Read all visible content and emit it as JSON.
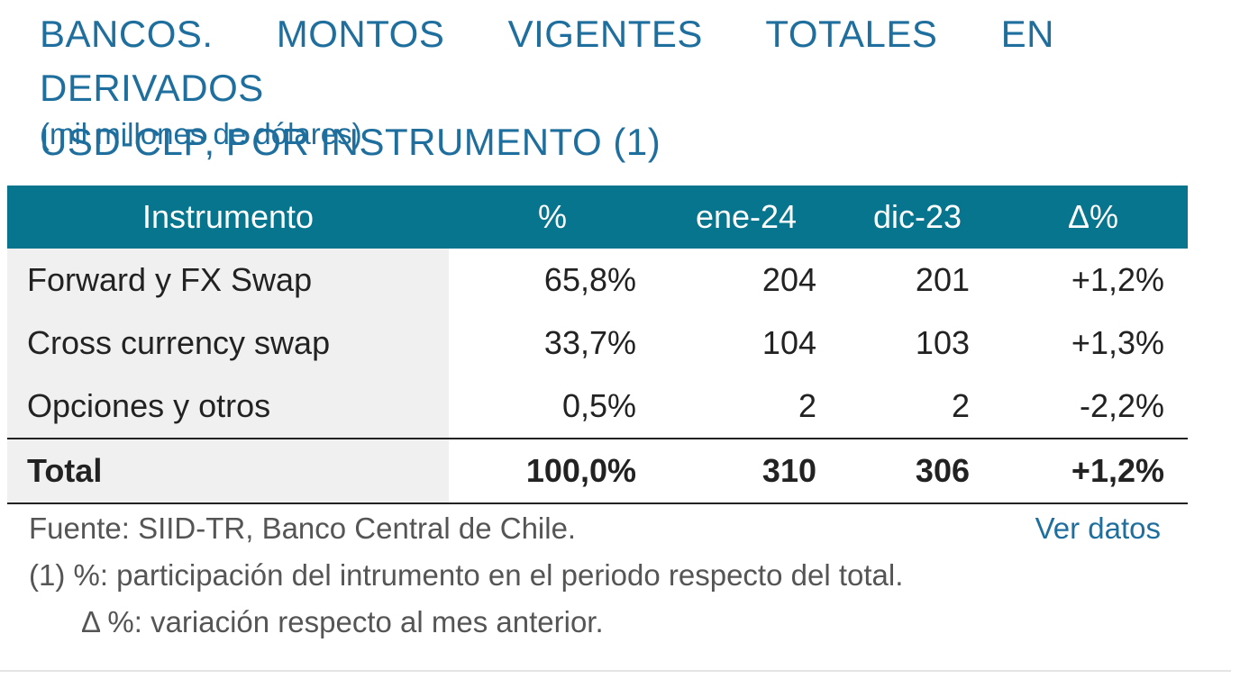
{
  "title": {
    "line1": "BANCOS. MONTOS VIGENTES TOTALES EN DERIVADOS",
    "line2": "USD-CLP, POR INSTRUMENTO (1)",
    "subtitle": "(mil millones de dólares)"
  },
  "table": {
    "headers": [
      "Instrumento",
      "%",
      "ene-24",
      "dic-23",
      "Δ%"
    ],
    "header_color": "#07758d",
    "rows": [
      {
        "instrument": "Forward y FX Swap",
        "pct": "65,8%",
        "ene24": "204",
        "dic23": "201",
        "delta": "+1,2%"
      },
      {
        "instrument": "Cross currency swap",
        "pct": "33,7%",
        "ene24": "104",
        "dic23": "103",
        "delta": "+1,3%"
      },
      {
        "instrument": "Opciones y otros",
        "pct": "0,5%",
        "ene24": "2",
        "dic23": "2",
        "delta": "-2,2%"
      }
    ],
    "total": {
      "instrument": "Total",
      "pct": "100,0%",
      "ene24": "310",
      "dic23": "306",
      "delta": "+1,2%"
    }
  },
  "footer": {
    "source": "Fuente: SIID-TR, Banco Central de Chile.",
    "link_label": "Ver datos",
    "note1": "(1) %: participación del intrumento en el periodo respecto del total.",
    "note2": "Δ %: variación respecto al mes anterior."
  }
}
